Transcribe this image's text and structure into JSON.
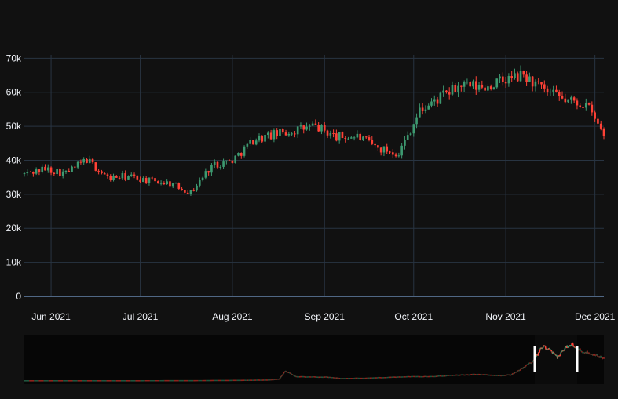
{
  "chart_data": {
    "type": "candlestick",
    "x_ticks": [
      "Jun 2021",
      "Jul 2021",
      "Aug 2021",
      "Sep 2021",
      "Oct 2021",
      "Nov 2021",
      "Dec 2021"
    ],
    "y_ticks": [
      "0",
      "10k",
      "20k",
      "30k",
      "40k",
      "50k",
      "60k",
      "70k"
    ],
    "ylim": [
      0,
      71000
    ],
    "xrange": [
      "2021-05-23",
      "2021-12-04"
    ],
    "grid": true,
    "rangeslider": true,
    "colors": {
      "increasing": "#3d9970",
      "decreasing": "#ff4136"
    },
    "close_by_week": [
      [
        "2021-05-23",
        36000
      ],
      [
        "2021-05-30",
        37500
      ],
      [
        "2021-06-06",
        36200
      ],
      [
        "2021-06-13",
        40200
      ],
      [
        "2021-06-20",
        34800
      ],
      [
        "2021-06-27",
        35300
      ],
      [
        "2021-07-04",
        34000
      ],
      [
        "2021-07-11",
        33300
      ],
      [
        "2021-07-18",
        30500
      ],
      [
        "2021-07-25",
        38500
      ],
      [
        "2021-08-01",
        40000
      ],
      [
        "2021-08-08",
        46000
      ],
      [
        "2021-08-15",
        47500
      ],
      [
        "2021-08-22",
        48800
      ],
      [
        "2021-08-29",
        50000
      ],
      [
        "2021-09-05",
        46800
      ],
      [
        "2021-09-12",
        47000
      ],
      [
        "2021-09-19",
        43500
      ],
      [
        "2021-09-26",
        42200
      ],
      [
        "2021-10-03",
        54500
      ],
      [
        "2021-10-10",
        58500
      ],
      [
        "2021-10-17",
        62000
      ],
      [
        "2021-10-24",
        61300
      ],
      [
        "2021-10-31",
        63300
      ],
      [
        "2021-11-07",
        65000
      ],
      [
        "2021-11-14",
        60200
      ],
      [
        "2021-11-21",
        57600
      ],
      [
        "2021-11-28",
        56500
      ],
      [
        "2021-12-04",
        47500
      ]
    ]
  }
}
